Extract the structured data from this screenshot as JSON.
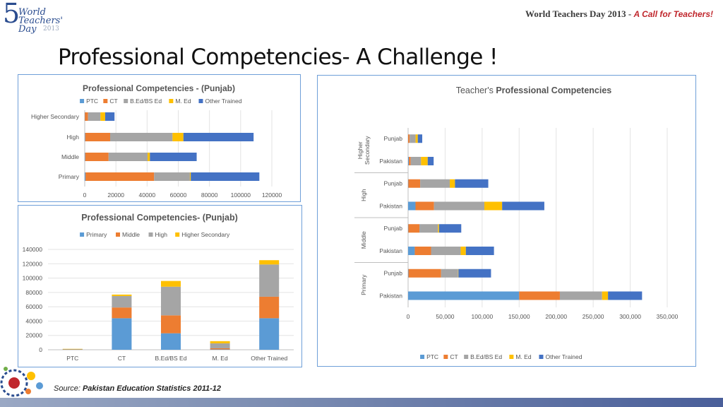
{
  "header": {
    "logo_number": "5",
    "logo_line1": "World",
    "logo_line2": "Teachers'",
    "logo_line3": "Day",
    "logo_year": "2013",
    "event_title": "World Teachers Day 2013 - ",
    "event_tagline": "A Call for Teachers!"
  },
  "slide_title": "Professional Competencies- A Challenge !",
  "source": {
    "prefix": "Source: ",
    "text": "Pakistan Education Statistics 2011-12"
  },
  "colors": {
    "PTC": "#5b9bd5",
    "CT": "#ed7d31",
    "BEd": "#a5a5a5",
    "MEd": "#ffc000",
    "Other": "#4472c4"
  },
  "chart_data": [
    {
      "type": "bar",
      "orientation": "horizontal",
      "stacked": true,
      "title": "Professional Competencies -  (Punjab)",
      "categories": [
        "Primary",
        "Middle",
        "High",
        "Higher Secondary"
      ],
      "series": [
        {
          "name": "PTC",
          "values": [
            500,
            300,
            300,
            100
          ]
        },
        {
          "name": "CT",
          "values": [
            44000,
            15000,
            16000,
            2000
          ]
        },
        {
          "name": "B.Ed/BS Ed",
          "values": [
            23000,
            25000,
            40000,
            8000
          ]
        },
        {
          "name": "M. Ed",
          "values": [
            500,
            1500,
            7000,
            3000
          ]
        },
        {
          "name": "Other Trained",
          "values": [
            44000,
            30000,
            45000,
            6000
          ]
        }
      ],
      "xlim": [
        0,
        120000
      ],
      "xticks": [
        "0",
        "20000",
        "40000",
        "60000",
        "80000",
        "100000",
        "120000"
      ],
      "legend": "top"
    },
    {
      "type": "bar",
      "orientation": "vertical",
      "stacked": true,
      "title": "Professional Competencies- (Punjab)",
      "categories": [
        "PTC",
        "CT",
        "B.Ed/BS Ed",
        "M. Ed",
        "Other Trained"
      ],
      "series": [
        {
          "name": "Primary",
          "values": [
            500,
            44000,
            23000,
            500,
            44000
          ]
        },
        {
          "name": "Middle",
          "values": [
            300,
            15000,
            25000,
            1500,
            30000
          ]
        },
        {
          "name": "High",
          "values": [
            300,
            16000,
            40000,
            7000,
            45000
          ]
        },
        {
          "name": "Higher Secondary",
          "values": [
            100,
            2000,
            8000,
            3000,
            6000
          ]
        }
      ],
      "ylim": [
        0,
        140000
      ],
      "yticks": [
        "0",
        "20000",
        "40000",
        "60000",
        "80000",
        "100000",
        "120000",
        "140000"
      ],
      "legend": "top"
    },
    {
      "type": "bar",
      "orientation": "horizontal",
      "stacked": true,
      "title_prefix": "Teacher's ",
      "title": "Professional Competencies",
      "groups": [
        {
          "label": "Higher Secondary",
          "rows": [
            "Punjab",
            "Pakistan"
          ]
        },
        {
          "label": "High",
          "rows": [
            "Punjab",
            "Pakistan"
          ]
        },
        {
          "label": "Middle",
          "rows": [
            "Punjab",
            "Pakistan"
          ]
        },
        {
          "label": "Primary",
          "rows": [
            "Punjab",
            "Pakistan"
          ]
        }
      ],
      "categories": [
        "Higher Secondary - Punjab",
        "Higher Secondary - Pakistan",
        "High - Punjab",
        "High - Pakistan",
        "Middle - Punjab",
        "Middle - Pakistan",
        "Primary - Punjab",
        "Primary - Pakistan"
      ],
      "series": [
        {
          "name": "PTC",
          "values": [
            100,
            1000,
            300,
            10000,
            300,
            9000,
            500,
            150000
          ]
        },
        {
          "name": "CT",
          "values": [
            2000,
            2500,
            16000,
            25000,
            15000,
            22000,
            44000,
            55000
          ]
        },
        {
          "name": "B.Ed/BS Ed",
          "values": [
            8000,
            14000,
            40000,
            68000,
            25000,
            40000,
            23000,
            57000
          ]
        },
        {
          "name": "M. Ed",
          "values": [
            3000,
            9000,
            7000,
            24000,
            1500,
            7000,
            500,
            8000
          ]
        },
        {
          "name": "Other Trained",
          "values": [
            6000,
            8000,
            45000,
            57000,
            30000,
            38000,
            44000,
            46000
          ]
        }
      ],
      "xlim": [
        0,
        350000
      ],
      "xticks": [
        "0",
        "50,000",
        "100,000",
        "150,000",
        "200,000",
        "250,000",
        "300,000",
        "350,000"
      ],
      "legend": "bottom"
    }
  ]
}
